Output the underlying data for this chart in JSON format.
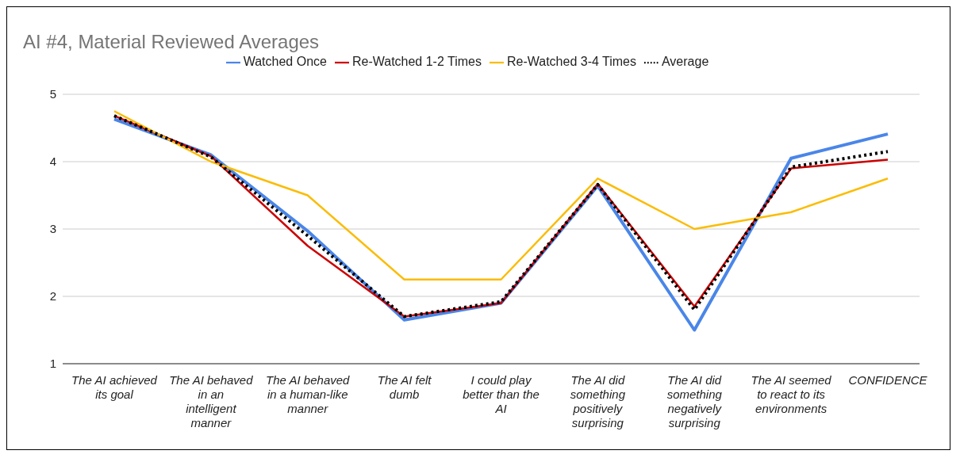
{
  "chart_data": {
    "type": "line",
    "title": "AI #4, Material Reviewed Averages",
    "categories": [
      "The AI achieved its goal",
      "The AI behaved in an intelligent manner",
      "The AI behaved in a human-like manner",
      "The AI felt dumb",
      "I could play better than the AI",
      "The AI did something positively surprising",
      "The AI did something negatively surprising",
      "The AI seemed to react to its environments",
      "CONFIDENCE"
    ],
    "series": [
      {
        "name": "Watched Once",
        "color": "#4a86e8",
        "values": [
          4.63,
          4.1,
          2.97,
          1.65,
          1.9,
          3.64,
          1.5,
          4.05,
          4.41
        ]
      },
      {
        "name": "Re-Watched 1-2 Times",
        "color": "#cc0000",
        "values": [
          4.68,
          4.08,
          2.75,
          1.7,
          1.9,
          3.67,
          1.85,
          3.9,
          4.03
        ]
      },
      {
        "name": "Re-Watched 3-4 Times",
        "color": "#fbbc04",
        "values": [
          4.75,
          4.0,
          3.5,
          2.25,
          2.25,
          3.75,
          3.0,
          3.25,
          3.75
        ]
      },
      {
        "name": "Average",
        "color": "#000000",
        "values": [
          4.68,
          4.07,
          2.9,
          1.7,
          1.92,
          3.66,
          1.8,
          3.92,
          4.15
        ],
        "line_style": "dotted"
      }
    ],
    "ylim": [
      1,
      5
    ],
    "yticks": [
      1,
      2,
      3,
      4,
      5
    ],
    "grid": "y",
    "legend": "top",
    "marker": "none",
    "line_style": "solid"
  }
}
